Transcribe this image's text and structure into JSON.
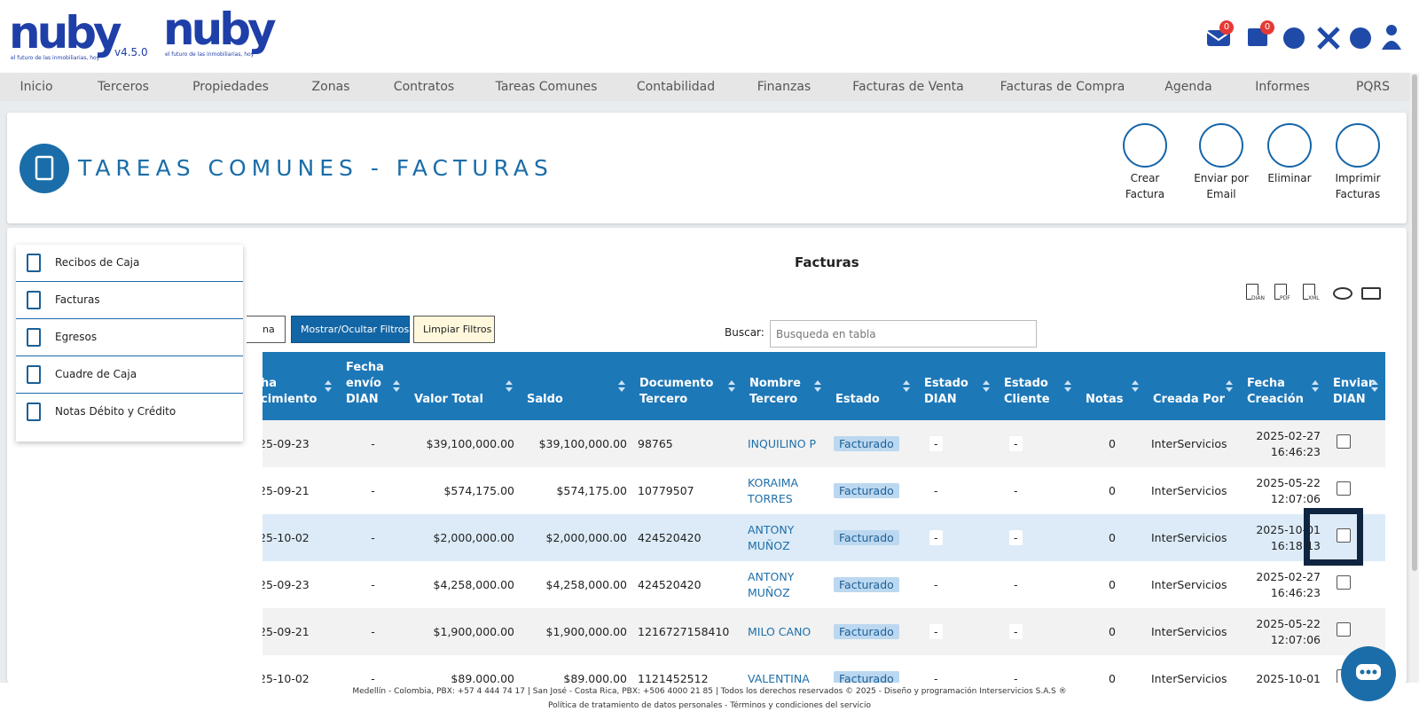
{
  "header": {
    "logo": "nuby",
    "tagline": "el futuro de las inmobiliarias, hoy",
    "version": "v4.5.0",
    "logo2": "nuby",
    "tagline2": "el futuro de las inmobiliarias, hoy",
    "badges": [
      "0",
      "0"
    ]
  },
  "nav": [
    "Inicio",
    "Terceros",
    "Propiedades",
    "Zonas",
    "Contratos",
    "Tareas Comunes",
    "Contabilidad",
    "Finanzas",
    "Facturas de Venta",
    "Facturas de Compra",
    "Agenda",
    "Informes",
    "PQRS"
  ],
  "page_header": {
    "title": "TAREAS COMUNES - FACTURAS",
    "actions": [
      "Crear Factura",
      "Enviar por Email",
      "Eliminar",
      "Imprimir Facturas"
    ]
  },
  "sidebar": [
    "Recibos de Caja",
    "Facturas",
    "Egresos",
    "Cuadre de Caja",
    "Notas Débito y Crédito"
  ],
  "main": {
    "title": "Facturas",
    "export_icons": [
      "DIAN",
      "PDF",
      "XML"
    ],
    "buttons": [
      "na",
      "Mostrar/Ocultar Filtros",
      "Limpiar Filtros"
    ],
    "search_label": "Buscar:",
    "search_placeholder": "Busqueda en tabla"
  },
  "table": {
    "columns": [
      "ha cimiento",
      "Fecha envío DIAN",
      "Valor Total",
      "Saldo",
      "Documento Tercero",
      "Nombre Tercero",
      "Estado",
      "Estado DIAN",
      "Estado Cliente",
      "Notas",
      "Creada Por",
      "Fecha Creación",
      "Enviar DIAN"
    ],
    "rows": [
      [
        "25-09-23",
        "-",
        "$39,100,000.00",
        "$39,100,000.00",
        "98765",
        "INQUILINO P",
        "Facturado",
        "-",
        "-",
        "0",
        "InterServicios",
        "2025-02-27 16:46:23"
      ],
      [
        "25-09-21",
        "-",
        "$574,175.00",
        "$574,175.00",
        "10779507",
        "KORAIMA TORRES",
        "Facturado",
        "-",
        "-",
        "0",
        "InterServicios",
        "2025-05-22 12:07:06"
      ],
      [
        "25-10-02",
        "-",
        "$2,000,000.00",
        "$2,000,000.00",
        "424520420",
        "ANTONY MUÑOZ",
        "Facturado",
        "-",
        "-",
        "0",
        "InterServicios",
        "2025-10-01 16:18:13"
      ],
      [
        "25-09-23",
        "-",
        "$4,258,000.00",
        "$4,258,000.00",
        "424520420",
        "ANTONY MUÑOZ",
        "Facturado",
        "-",
        "-",
        "0",
        "InterServicios",
        "2025-02-27 16:46:23"
      ],
      [
        "25-09-21",
        "-",
        "$1,900,000.00",
        "$1,900,000.00",
        "1216727158410",
        "MILO CANO",
        "Facturado",
        "-",
        "-",
        "0",
        "InterServicios",
        "2025-05-22 12:07:06"
      ],
      [
        "25-10-02",
        "-",
        "$89,000.00",
        "$89,000.00",
        "1121452512",
        "VALENTINA",
        "Facturado",
        "-",
        "-",
        "0",
        "InterServicios",
        "2025-10-01"
      ]
    ]
  },
  "footer": [
    "Medellín - Colombia, PBX: +57 4 444 74 17 | San José - Costa Rica, PBX: +506 4000 21 85 | Todos los derechos reservados © 2025 - Diseño y programación Interservicios S.A.S ®",
    "Política de tratamiento de datos personales - Términos y condiciones del servicio"
  ]
}
